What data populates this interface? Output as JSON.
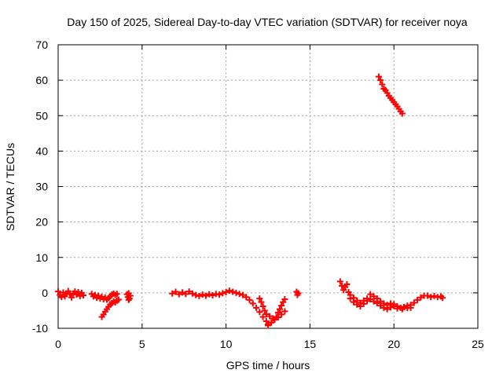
{
  "chart_data": {
    "type": "scatter",
    "title": "Day 150 of 2025, Sidereal Day-to-day VTEC variation (SDTVAR) for receiver noya",
    "xlabel": "GPS time / hours",
    "ylabel": "SDTVAR / TECUs",
    "xlim": [
      0,
      25
    ],
    "ylim": [
      -10,
      70
    ],
    "xticks": [
      0,
      5,
      10,
      15,
      20,
      25
    ],
    "yticks": [
      -10,
      0,
      10,
      20,
      30,
      40,
      50,
      60,
      70
    ],
    "grid": true,
    "marker": "plus",
    "color": "#ff0000",
    "tracks": [
      {
        "name": "track-1",
        "points": [
          [
            0.0,
            0.4
          ],
          [
            0.1,
            -0.6
          ],
          [
            0.2,
            -1.2
          ],
          [
            0.3,
            0.1
          ],
          [
            0.4,
            -1.0
          ],
          [
            0.5,
            -0.3
          ],
          [
            0.6,
            0.5
          ],
          [
            0.7,
            -0.4
          ],
          [
            0.8,
            -1.3
          ],
          [
            0.9,
            -0.2
          ],
          [
            1.0,
            0.4
          ],
          [
            1.1,
            -0.5
          ],
          [
            1.2,
            0.2
          ],
          [
            1.3,
            -0.9
          ],
          [
            1.4,
            0.0
          ],
          [
            1.5,
            -0.7
          ]
        ]
      },
      {
        "name": "track-2",
        "points": [
          [
            2.0,
            -0.3
          ],
          [
            2.1,
            -1.0
          ],
          [
            2.2,
            -0.6
          ],
          [
            2.3,
            -1.4
          ],
          [
            2.4,
            -0.8
          ],
          [
            2.5,
            -1.6
          ],
          [
            2.6,
            -1.1
          ],
          [
            2.7,
            -1.8
          ],
          [
            2.8,
            -1.3
          ],
          [
            2.9,
            -1.9
          ],
          [
            3.0,
            -1.5
          ],
          [
            3.1,
            -1.0
          ],
          [
            3.2,
            -0.5
          ],
          [
            3.3,
            -0.2
          ],
          [
            3.4,
            -0.6
          ],
          [
            3.5,
            -0.3
          ]
        ]
      },
      {
        "name": "track-3",
        "points": [
          [
            2.6,
            -6.8
          ],
          [
            2.7,
            -6.1
          ],
          [
            2.8,
            -5.3
          ],
          [
            2.9,
            -4.6
          ],
          [
            3.0,
            -3.9
          ],
          [
            3.1,
            -3.3
          ],
          [
            3.2,
            -2.9
          ],
          [
            3.3,
            -2.4
          ],
          [
            3.4,
            -2.7
          ],
          [
            3.5,
            -2.2
          ],
          [
            3.6,
            -1.9
          ]
        ]
      },
      {
        "name": "track-4",
        "points": [
          [
            4.1,
            -0.4
          ],
          [
            4.15,
            -1.2
          ],
          [
            4.2,
            -2.0
          ],
          [
            4.25,
            -1.6
          ],
          [
            4.3,
            -0.8
          ],
          [
            4.2,
            -0.1
          ]
        ]
      },
      {
        "name": "track-5",
        "points": [
          [
            6.8,
            -0.2
          ],
          [
            7.0,
            0.3
          ],
          [
            7.2,
            -0.4
          ],
          [
            7.4,
            0.1
          ],
          [
            7.6,
            -0.3
          ],
          [
            7.8,
            0.4
          ],
          [
            8.0,
            -0.2
          ],
          [
            8.2,
            -0.6
          ],
          [
            8.4,
            -0.9
          ],
          [
            8.6,
            -0.5
          ],
          [
            8.8,
            -0.8
          ],
          [
            9.0,
            -0.4
          ],
          [
            9.2,
            -0.7
          ],
          [
            9.4,
            -0.3
          ],
          [
            9.6,
            -0.5
          ],
          [
            9.8,
            -0.1
          ],
          [
            10.0,
            0.2
          ],
          [
            10.2,
            0.6
          ],
          [
            10.4,
            0.3
          ],
          [
            10.6,
            0.0
          ],
          [
            10.8,
            -0.3
          ],
          [
            11.0,
            -0.6
          ],
          [
            11.2,
            -1.2
          ],
          [
            11.4,
            -2.0
          ],
          [
            11.6,
            -3.0
          ],
          [
            11.8,
            -4.2
          ],
          [
            12.0,
            -5.4
          ],
          [
            12.2,
            -6.8
          ],
          [
            12.4,
            -8.0
          ],
          [
            12.5,
            -8.9
          ]
        ]
      },
      {
        "name": "track-6",
        "points": [
          [
            12.0,
            -1.6
          ],
          [
            12.1,
            -2.6
          ],
          [
            12.2,
            -3.8
          ],
          [
            12.3,
            -5.0
          ],
          [
            12.4,
            -6.0
          ],
          [
            12.6,
            -6.6
          ],
          [
            12.8,
            -7.2
          ],
          [
            13.0,
            -6.8
          ],
          [
            13.1,
            -5.6
          ],
          [
            13.2,
            -4.6
          ],
          [
            13.3,
            -3.6
          ],
          [
            13.4,
            -2.6
          ],
          [
            13.5,
            -1.8
          ]
        ]
      },
      {
        "name": "track-7",
        "points": [
          [
            12.5,
            -9.2
          ],
          [
            12.7,
            -8.4
          ],
          [
            12.9,
            -7.6
          ],
          [
            13.1,
            -6.9
          ],
          [
            13.3,
            -6.1
          ],
          [
            13.5,
            -5.2
          ]
        ]
      },
      {
        "name": "track-8",
        "points": [
          [
            14.2,
            0.3
          ],
          [
            14.25,
            -0.6
          ],
          [
            14.3,
            -0.1
          ]
        ]
      },
      {
        "name": "track-9",
        "points": [
          [
            16.8,
            3.2
          ],
          [
            16.9,
            2.0
          ],
          [
            17.0,
            0.8
          ],
          [
            17.1,
            1.6
          ],
          [
            17.2,
            2.4
          ],
          [
            17.3,
            0.2
          ],
          [
            17.4,
            -0.6
          ],
          [
            17.6,
            -1.4
          ],
          [
            17.8,
            -2.2
          ],
          [
            18.0,
            -2.8
          ],
          [
            18.2,
            -2.2
          ],
          [
            18.4,
            -1.6
          ],
          [
            18.6,
            -0.4
          ],
          [
            18.8,
            -1.0
          ],
          [
            19.0,
            -1.6
          ],
          [
            19.2,
            -2.4
          ],
          [
            19.4,
            -3.0
          ],
          [
            19.6,
            -3.4
          ],
          [
            19.8,
            -3.0
          ],
          [
            20.0,
            -3.2
          ],
          [
            20.2,
            -3.8
          ],
          [
            20.4,
            -4.2
          ],
          [
            20.6,
            -4.0
          ],
          [
            20.8,
            -3.6
          ],
          [
            21.0,
            -3.4
          ],
          [
            21.2,
            -2.8
          ],
          [
            21.4,
            -2.0
          ],
          [
            21.6,
            -1.3
          ],
          [
            21.8,
            -0.8
          ],
          [
            22.0,
            -0.8
          ],
          [
            22.2,
            -1.2
          ],
          [
            22.4,
            -0.9
          ],
          [
            22.6,
            -1.2
          ],
          [
            22.8,
            -1.0
          ],
          [
            22.9,
            -1.4
          ]
        ]
      },
      {
        "name": "track-10",
        "points": [
          [
            17.4,
            -1.6
          ],
          [
            17.6,
            -2.6
          ],
          [
            17.8,
            -3.3
          ],
          [
            18.0,
            -3.8
          ],
          [
            18.2,
            -3.1
          ],
          [
            18.4,
            -2.3
          ],
          [
            18.6,
            -1.8
          ],
          [
            18.8,
            -2.4
          ],
          [
            19.0,
            -2.9
          ],
          [
            19.2,
            -3.6
          ],
          [
            19.4,
            -4.2
          ],
          [
            19.6,
            -4.6
          ],
          [
            19.8,
            -4.1
          ],
          [
            20.0,
            -3.7
          ],
          [
            20.2,
            -4.4
          ],
          [
            20.5,
            -4.6
          ],
          [
            20.8,
            -4.3
          ],
          [
            21.0,
            -4.2
          ]
        ]
      },
      {
        "name": "track-11",
        "points": [
          [
            19.1,
            61.0
          ],
          [
            19.2,
            60.0
          ],
          [
            19.3,
            58.8
          ],
          [
            19.4,
            57.6
          ],
          [
            19.5,
            57.2
          ],
          [
            19.6,
            56.4
          ],
          [
            19.7,
            55.6
          ],
          [
            19.8,
            55.0
          ],
          [
            19.9,
            54.4
          ],
          [
            20.0,
            53.8
          ],
          [
            20.1,
            53.2
          ],
          [
            20.2,
            52.6
          ],
          [
            20.3,
            51.9
          ],
          [
            20.4,
            51.2
          ],
          [
            20.5,
            50.6
          ]
        ]
      }
    ]
  }
}
